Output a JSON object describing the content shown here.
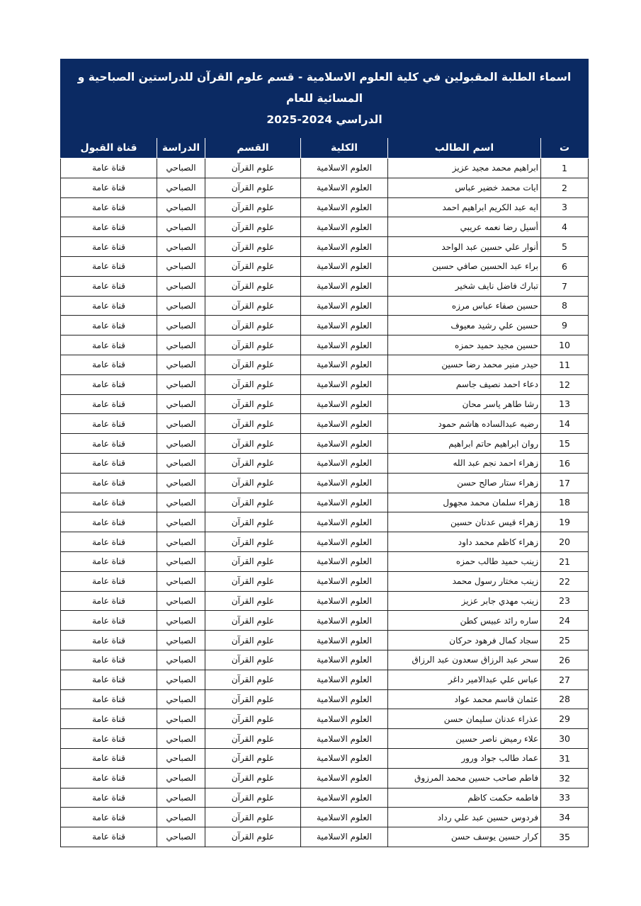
{
  "title_line1": "اسماء الطلبة المقبولين في كلية العلوم الاسلامية - قسم علوم القرآن للدراستين الصباحية و المسائية للعام",
  "title_line2": "الدراسي 2024-2025",
  "colors": {
    "header_bg": "#0b2a63",
    "header_text": "#ffffff"
  },
  "columns": {
    "num": "ت",
    "name": "اسم الطالب",
    "college": "الكلية",
    "department": "القسم",
    "study": "الدراسة",
    "channel": "قناة القبول"
  },
  "defaults": {
    "college": "العلوم الاسلامية",
    "department": "علوم القرآن",
    "study": "الصباحي",
    "channel": "قناة عامة"
  },
  "rows": [
    {
      "num": "1",
      "name": "ابراهيم محمد مجيد عزيز",
      "college": "العلوم الاسلامية",
      "department": "علوم القرآن",
      "study": "الصباحي",
      "channel": "قناة عامة"
    },
    {
      "num": "2",
      "name": "ايات محمد خضير عباس",
      "college": "العلوم الاسلامية",
      "department": "علوم القرآن",
      "study": "الصباحي",
      "channel": "قناة عامة"
    },
    {
      "num": "3",
      "name": "ايه عبد الكريم ابراهيم احمد",
      "college": "العلوم الاسلامية",
      "department": "علوم القرآن",
      "study": "الصباحي",
      "channel": "قناة عامة"
    },
    {
      "num": "4",
      "name": "أسيل رضا نعمه عريبي",
      "college": "العلوم الاسلامية",
      "department": "علوم القرآن",
      "study": "الصباحي",
      "channel": "قناة عامة"
    },
    {
      "num": "5",
      "name": "أنوار علي حسين عبد الواحد",
      "college": "العلوم الاسلامية",
      "department": "علوم القرآن",
      "study": "الصباحي",
      "channel": "قناة عامة"
    },
    {
      "num": "6",
      "name": "براء عبد الحسين صافي حسين",
      "college": "العلوم الاسلامية",
      "department": "علوم القرآن",
      "study": "الصباحي",
      "channel": "قناة عامة"
    },
    {
      "num": "7",
      "name": "تبارك فاضل نايف شخير",
      "college": "العلوم الاسلامية",
      "department": "علوم القرآن",
      "study": "الصباحي",
      "channel": "قناة عامة"
    },
    {
      "num": "8",
      "name": "حسين صفاء عباس مرزه",
      "college": "العلوم الاسلامية",
      "department": "علوم القرآن",
      "study": "الصباحي",
      "channel": "قناة عامة"
    },
    {
      "num": "9",
      "name": "حسين علي رشيد معيوف",
      "college": "العلوم الاسلامية",
      "department": "علوم القرآن",
      "study": "الصباحي",
      "channel": "قناة عامة"
    },
    {
      "num": "10",
      "name": "حسين مجيد حميد حمزه",
      "college": "العلوم الاسلامية",
      "department": "علوم القرآن",
      "study": "الصباحي",
      "channel": "قناة عامة"
    },
    {
      "num": "11",
      "name": "حيدر منير محمد رضا حسين",
      "college": "العلوم الاسلامية",
      "department": "علوم القرآن",
      "study": "الصباحي",
      "channel": "قناة عامة"
    },
    {
      "num": "12",
      "name": "دعاء احمد نصيف جاسم",
      "college": "العلوم الاسلامية",
      "department": "علوم القرآن",
      "study": "الصباحي",
      "channel": "قناة عامة"
    },
    {
      "num": "13",
      "name": "رشا طاهر ياسر محان",
      "college": "العلوم الاسلامية",
      "department": "علوم القرآن",
      "study": "الصباحي",
      "channel": "قناة عامة"
    },
    {
      "num": "14",
      "name": "رضيه عبدالساده هاشم حمود",
      "college": "العلوم الاسلامية",
      "department": "علوم القرآن",
      "study": "الصباحي",
      "channel": "قناة عامة"
    },
    {
      "num": "15",
      "name": "روان ابراهيم حاتم ابراهيم",
      "college": "العلوم الاسلامية",
      "department": "علوم القرآن",
      "study": "الصباحي",
      "channel": "قناة عامة"
    },
    {
      "num": "16",
      "name": "زهراء احمد نجم عبد الله",
      "college": "العلوم الاسلامية",
      "department": "علوم القرآن",
      "study": "الصباحي",
      "channel": "قناة عامة"
    },
    {
      "num": "17",
      "name": "زهراء ستار صالح حسن",
      "college": "العلوم الاسلامية",
      "department": "علوم القرآن",
      "study": "الصباحي",
      "channel": "قناة عامة"
    },
    {
      "num": "18",
      "name": "زهراء سلمان محمد مجهول",
      "college": "العلوم الاسلامية",
      "department": "علوم القرآن",
      "study": "الصباحي",
      "channel": "قناة عامة"
    },
    {
      "num": "19",
      "name": "زهراء قيس عدنان حسين",
      "college": "العلوم الاسلامية",
      "department": "علوم القرآن",
      "study": "الصباحي",
      "channel": "قناة عامة"
    },
    {
      "num": "20",
      "name": "زهراء كاظم محمد داود",
      "college": "العلوم الاسلامية",
      "department": "علوم القرآن",
      "study": "الصباحي",
      "channel": "قناة عامة"
    },
    {
      "num": "21",
      "name": "زينب حميد طالب حمزه",
      "college": "العلوم الاسلامية",
      "department": "علوم القرآن",
      "study": "الصباحي",
      "channel": "قناة عامة"
    },
    {
      "num": "22",
      "name": "زينب مختار رسول محمد",
      "college": "العلوم الاسلامية",
      "department": "علوم القرآن",
      "study": "الصباحي",
      "channel": "قناة عامة"
    },
    {
      "num": "23",
      "name": "زينب مهدي جابر عزيز",
      "college": "العلوم الاسلامية",
      "department": "علوم القرآن",
      "study": "الصباحي",
      "channel": "قناة عامة"
    },
    {
      "num": "24",
      "name": "ساره رائد عبيس كطن",
      "college": "العلوم الاسلامية",
      "department": "علوم القرآن",
      "study": "الصباحي",
      "channel": "قناة عامة"
    },
    {
      "num": "25",
      "name": "سجاد كمال فرهود حركان",
      "college": "العلوم الاسلامية",
      "department": "علوم القرآن",
      "study": "الصباحي",
      "channel": "قناة عامة"
    },
    {
      "num": "26",
      "name": "سحر عبد الرزاق سعدون عبد الرزاق",
      "college": "العلوم الاسلامية",
      "department": "علوم القرآن",
      "study": "الصباحي",
      "channel": "قناة عامة"
    },
    {
      "num": "27",
      "name": "عباس علي عبدالامير داغر",
      "college": "العلوم الاسلامية",
      "department": "علوم القرآن",
      "study": "الصباحي",
      "channel": "قناة عامة"
    },
    {
      "num": "28",
      "name": "عثمان قاسم محمد عواد",
      "college": "العلوم الاسلامية",
      "department": "علوم القرآن",
      "study": "الصباحي",
      "channel": "قناة عامة"
    },
    {
      "num": "29",
      "name": "عذراء عدنان سليمان حسن",
      "college": "العلوم الاسلامية",
      "department": "علوم القرآن",
      "study": "الصباحي",
      "channel": "قناة عامة"
    },
    {
      "num": "30",
      "name": "علاء رميض ناصر حسين",
      "college": "العلوم الاسلامية",
      "department": "علوم القرآن",
      "study": "الصباحي",
      "channel": "قناة عامة"
    },
    {
      "num": "31",
      "name": "عماد طالب جواد ورور",
      "college": "العلوم الاسلامية",
      "department": "علوم القرآن",
      "study": "الصباحي",
      "channel": "قناة عامة"
    },
    {
      "num": "32",
      "name": "فاطم صاحب حسين محمد المرزوق",
      "college": "العلوم الاسلامية",
      "department": "علوم القرآن",
      "study": "الصباحي",
      "channel": "قناة عامة"
    },
    {
      "num": "33",
      "name": "فاطمه حكمت كاظم",
      "college": "العلوم الاسلامية",
      "department": "علوم القرآن",
      "study": "الصباحي",
      "channel": "قناة عامة"
    },
    {
      "num": "34",
      "name": "فردوس حسين عبد علي رداد",
      "college": "العلوم الاسلامية",
      "department": "علوم القرآن",
      "study": "الصباحي",
      "channel": "قناة عامة"
    },
    {
      "num": "35",
      "name": "كرار حسين يوسف حسن",
      "college": "العلوم الاسلامية",
      "department": "علوم القرآن",
      "study": "الصباحي",
      "channel": "قناة عامة"
    }
  ]
}
